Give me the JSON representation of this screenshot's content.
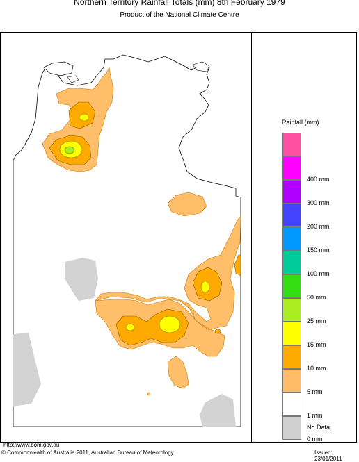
{
  "title": "Northern Territory Rainfall Totals (mm) 8th February 1979",
  "subtitle": "Product of the National Climate Centre",
  "legend": {
    "title": "Rainfall (mm)",
    "items": [
      {
        "label": "",
        "color": "#ff4fa3"
      },
      {
        "label": "400 mm",
        "color": "#ff00ff"
      },
      {
        "label": "300 mm",
        "color": "#b000ff"
      },
      {
        "label": "200 mm",
        "color": "#4444ff"
      },
      {
        "label": "150 mm",
        "color": "#0099ff"
      },
      {
        "label": "100 mm",
        "color": "#00cc99"
      },
      {
        "label": "50 mm",
        "color": "#33dd11"
      },
      {
        "label": "25 mm",
        "color": "#aaee22"
      },
      {
        "label": "15 mm",
        "color": "#ffff00"
      },
      {
        "label": "10 mm",
        "color": "#ffaa00"
      },
      {
        "label": "5 mm",
        "color": "#ffbb66"
      },
      {
        "label": "1 mm",
        "color": "#ffffff"
      },
      {
        "label": "0 mm",
        "color": "#d0d0d0"
      },
      {
        "label": "No Data",
        "color": ""
      }
    ]
  },
  "footer": {
    "url": "http://www.bom.gov.au",
    "copyright": "© Commonwealth of Australia 2011, Australian Bureau of Meteorology",
    "issued": "Issued: 23/01/2011"
  }
}
